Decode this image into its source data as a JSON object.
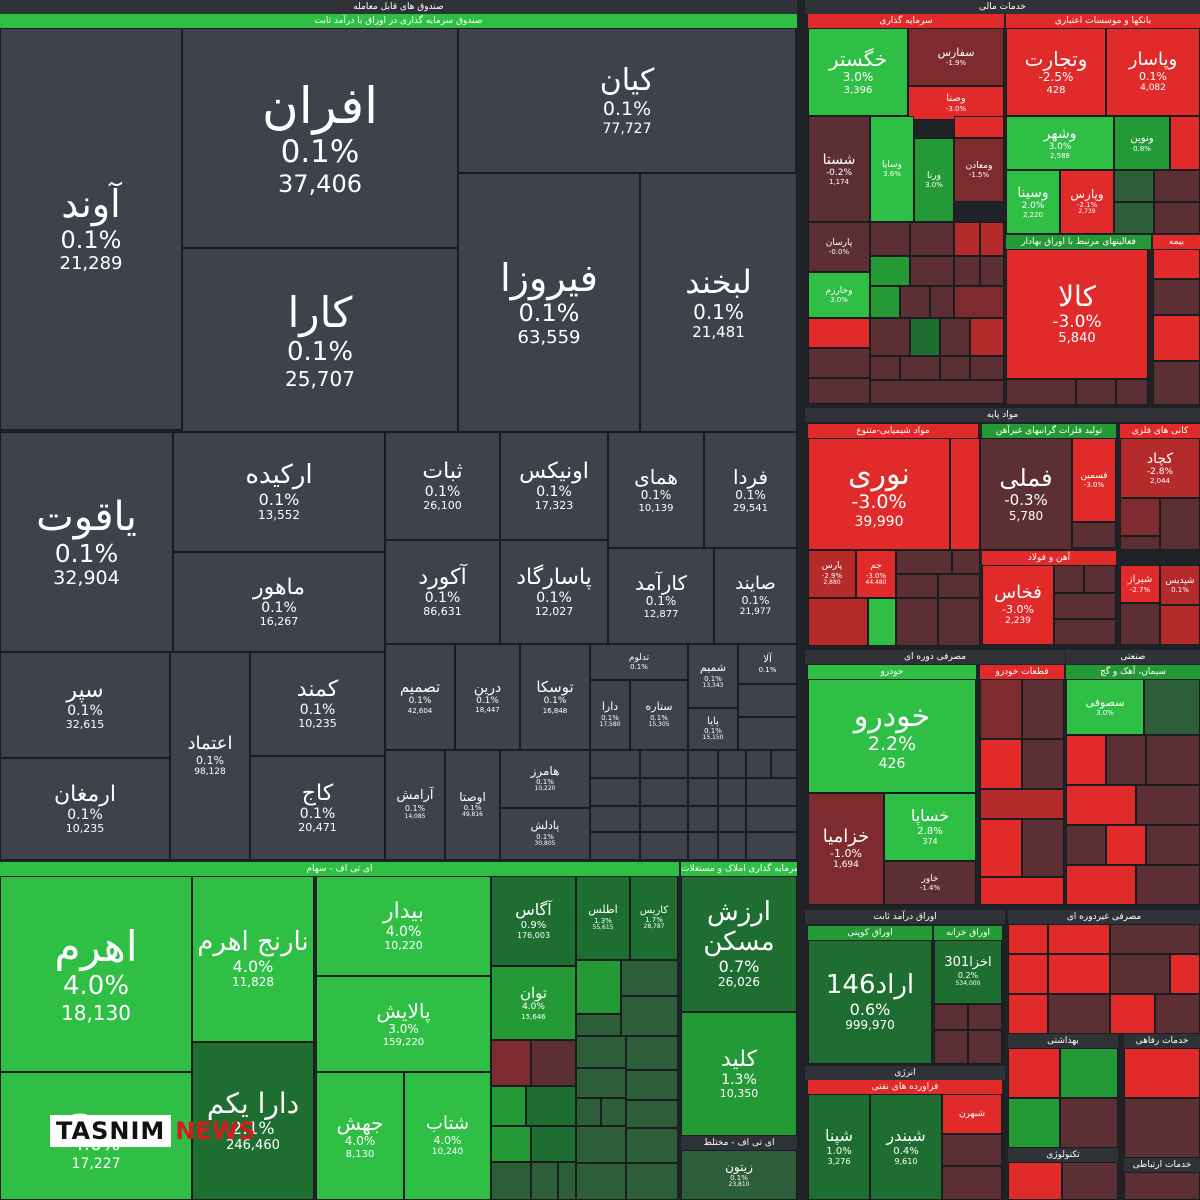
{
  "headers": {
    "top_left": "صندوق های قابل معامله",
    "top_left_sub": "صندوق سرمایه گذاری در اوراق با درآمد ثابت",
    "top_right": "خدمات مالی",
    "etf_stock": "ای تی اف - سهام",
    "mixed": "سرمایه گذاری املاک و مستغلات",
    "mixed2": "ای تی اف - مختلط",
    "investment": "سرمایه گذاری",
    "banks": "بانکها و موسسات اعتباری",
    "related": "فعالیتهای مرتبط با اوراق بهادار",
    "insurance": "بیمه",
    "base_metals": "مواد پایه",
    "chemicals": "مواد شیمیایی-متنوع",
    "oil": "تولید فلزات گرانبهای غیرآهن",
    "mining": "کانی های فلزی",
    "steel": "آهن و فولاد",
    "consumer": "مصرفی دوره ای",
    "auto": "خودرو",
    "parts": "قطعات خودرو",
    "industrial": "صنعتی",
    "cement": "سیمان، آهک و گچ",
    "fixed_income": "اوراق درآمد ثابت",
    "coupon": "اوراق کوپنی",
    "treasury": "اوراق خزانه",
    "non_durable": "مصرفی غیردوره ای",
    "energy": "انرژی",
    "oil_products": "فراورده های نفتی",
    "health": "بهداشتی",
    "tech": "تکنولوژی",
    "welfare": "خدمات رفاهی",
    "telecom": "خدمات ارتباطی"
  },
  "gray_cells": [
    {
      "name": "آوند",
      "pct": "0.1%",
      "vol": "21,289"
    },
    {
      "name": "افران",
      "pct": "0.1%",
      "vol": "37,406"
    },
    {
      "name": "کارا",
      "pct": "0.1%",
      "vol": "25,707"
    },
    {
      "name": "کیان",
      "pct": "0.1%",
      "vol": "77,727"
    },
    {
      "name": "فیروزا",
      "pct": "0.1%",
      "vol": "63,559"
    },
    {
      "name": "لبخند",
      "pct": "0.1%",
      "vol": "21,481"
    },
    {
      "name": "یاقوت",
      "pct": "0.1%",
      "vol": "32,904"
    },
    {
      "name": "ارکیده",
      "pct": "0.1%",
      "vol": "13,552"
    },
    {
      "name": "ماهور",
      "pct": "0.1%",
      "vol": "16,267"
    },
    {
      "name": "ثبات",
      "pct": "0.1%",
      "vol": "26,100"
    },
    {
      "name": "اونیکس",
      "pct": "0.1%",
      "vol": "17,323"
    },
    {
      "name": "همای",
      "pct": "0.1%",
      "vol": "10,139"
    },
    {
      "name": "فردا",
      "pct": "0.1%",
      "vol": "29,541"
    },
    {
      "name": "آکورد",
      "pct": "0.1%",
      "vol": "86,631"
    },
    {
      "name": "پاسارگاد",
      "pct": "0.1%",
      "vol": "12,027"
    },
    {
      "name": "کارآمد",
      "pct": "0.1%",
      "vol": "12,877"
    },
    {
      "name": "صایند",
      "pct": "0.1%",
      "vol": "21,977"
    },
    {
      "name": "سپر",
      "pct": "0.1%",
      "vol": "32,615"
    },
    {
      "name": "اعتماد",
      "pct": "0.1%",
      "vol": "98,128"
    },
    {
      "name": "کمند",
      "pct": "0.1%",
      "vol": "10,235"
    },
    {
      "name": "ارمغان",
      "pct": "0.1%",
      "vol": "10,235"
    },
    {
      "name": "کاج",
      "pct": "0.1%",
      "vol": "20,471"
    },
    {
      "name": "تصمیم",
      "pct": "0.1%",
      "vol": "42,604"
    },
    {
      "name": "درین",
      "pct": "0.1%",
      "vol": "18,447"
    },
    {
      "name": "توسکا",
      "pct": "0.1%",
      "vol": "16,848"
    },
    {
      "name": "آرامش",
      "pct": "0.1%",
      "vol": "14,085"
    },
    {
      "name": "اوصتا",
      "pct": "0.1%",
      "vol": "49,816"
    },
    {
      "name": "هامرز",
      "pct": "0.1%",
      "vol": "10,220"
    },
    {
      "name": "پادلش",
      "pct": "0.1%",
      "vol": "30,805"
    },
    {
      "name": "دارا",
      "pct": "0.1%",
      "vol": "17,580"
    },
    {
      "name": "ستاره",
      "pct": "0.1%",
      "vol": "15,305"
    },
    {
      "name": "شمیم",
      "pct": "0.1%",
      "vol": "13,343"
    },
    {
      "name": "آلا",
      "pct": "0.1%",
      "vol": ""
    },
    {
      "name": "پایا",
      "pct": "0.1%",
      "vol": "15,150"
    },
    {
      "name": "تدلوم",
      "pct": "0.1%",
      "vol": ""
    }
  ],
  "green_cells": [
    {
      "name": "اهرم",
      "pct": "4.0%",
      "vol": "18,130"
    },
    {
      "name": "نارنج اهرم",
      "pct": "4.0%",
      "vol": "11,828"
    },
    {
      "name": "دارا یکم",
      "pct": "2.1%",
      "vol": "246,460"
    },
    {
      "name": "موج",
      "pct": "4.0%",
      "vol": "17,227"
    },
    {
      "name": "بیدار",
      "pct": "4.0%",
      "vol": "10,220"
    },
    {
      "name": "پالایش",
      "pct": "3.0%",
      "vol": "159,220"
    },
    {
      "name": "جهش",
      "pct": "4.0%",
      "vol": "8,130"
    },
    {
      "name": "شتاب",
      "pct": "4.0%",
      "vol": "10,240"
    },
    {
      "name": "آگاس",
      "pct": "0.9%",
      "vol": "176,003"
    },
    {
      "name": "اطلس",
      "pct": "1.3%",
      "vol": "55,615"
    },
    {
      "name": "کاریس",
      "pct": "1.7%",
      "vol": "28,787"
    },
    {
      "name": "توان",
      "pct": "4.0%",
      "vol": "15,646"
    },
    {
      "name": "ارزش مسکن",
      "pct": "0.7%",
      "vol": "26,026"
    },
    {
      "name": "کلید",
      "pct": "1.3%",
      "vol": "10,350"
    },
    {
      "name": "زیتون",
      "pct": "0.1%",
      "vol": "23,810"
    }
  ],
  "right_cells": [
    {
      "name": "خگستر",
      "pct": "3.0%",
      "vol": "3,396"
    },
    {
      "name": "وتجارت",
      "pct": "-2.5%",
      "vol": "428"
    },
    {
      "name": "وپاسار",
      "pct": "0.1%",
      "vol": "4,082"
    },
    {
      "name": "سفارس",
      "pct": "-1.9%",
      "vol": ""
    },
    {
      "name": "وصنا",
      "pct": "-3.0%",
      "vol": ""
    },
    {
      "name": "شستا",
      "pct": "-0.2%",
      "vol": "1,174"
    },
    {
      "name": "وسایا",
      "pct": "3.6%",
      "vol": ""
    },
    {
      "name": "ورنا",
      "pct": "3.0%",
      "vol": ""
    },
    {
      "name": "ومعادن",
      "pct": "-1.5%",
      "vol": ""
    },
    {
      "name": "وشهر",
      "pct": "3.0%",
      "vol": "2,588"
    },
    {
      "name": "ونوین",
      "pct": "0.8%",
      "vol": ""
    },
    {
      "name": "وسینا",
      "pct": "2.0%",
      "vol": "2,220"
    },
    {
      "name": "وپارس",
      "pct": "-2.1%",
      "vol": "2,739"
    },
    {
      "name": "کالا",
      "pct": "-3.0%",
      "vol": "5,840"
    },
    {
      "name": "پارسان",
      "pct": "-0.0%",
      "vol": ""
    },
    {
      "name": "وخارزم",
      "pct": "3.0%",
      "vol": ""
    },
    {
      "name": "نوری",
      "pct": "-3.0%",
      "vol": "39,990"
    },
    {
      "name": "فملی",
      "pct": "-0.3%",
      "vol": "5,780"
    },
    {
      "name": "فسمین",
      "pct": "-3.0%",
      "vol": ""
    },
    {
      "name": "کچاد",
      "pct": "-2.8%",
      "vol": "2,044"
    },
    {
      "name": "پارس",
      "pct": "-2.9%",
      "vol": "2,880"
    },
    {
      "name": "جم",
      "pct": "-3.0%",
      "vol": "44,480"
    },
    {
      "name": "فخاس",
      "pct": "-3.0%",
      "vol": "2,239"
    },
    {
      "name": "شپدیس",
      "pct": "0.1%",
      "vol": ""
    },
    {
      "name": "شیراز",
      "pct": "-2.7%",
      "vol": ""
    },
    {
      "name": "خودرو",
      "pct": "2.2%",
      "vol": "426"
    },
    {
      "name": "خزامیا",
      "pct": "-1.0%",
      "vol": "1,694"
    },
    {
      "name": "خساپا",
      "pct": "2.8%",
      "vol": "374"
    },
    {
      "name": "خاور",
      "pct": "-1.4%",
      "vol": ""
    },
    {
      "name": "سصوفی",
      "pct": "3.0%",
      "vol": ""
    },
    {
      "name": "اراد146",
      "pct": "0.6%",
      "vol": "999,970"
    },
    {
      "name": "اخزا301",
      "pct": "0.2%",
      "vol": "534,000"
    },
    {
      "name": "شپنا",
      "pct": "1.0%",
      "vol": "3,276"
    },
    {
      "name": "شبندر",
      "pct": "0.4%",
      "vol": "9,610"
    },
    {
      "name": "شبهرن",
      "pct": "",
      "vol": ""
    }
  ],
  "watermark": {
    "t": "TASNIM",
    "n": "NEWS"
  },
  "colors": {
    "up_strong": "#2fbf45",
    "up": "#249a37",
    "down_strong": "#e12a2a",
    "down": "#b52a2a",
    "neutral": "#3d424b"
  }
}
